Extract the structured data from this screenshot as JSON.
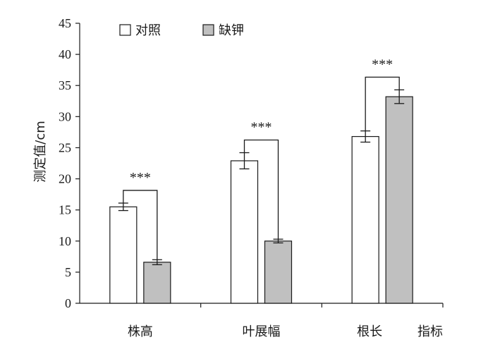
{
  "chart_data": {
    "type": "bar",
    "categories": [
      "株高",
      "叶展幅",
      "根长"
    ],
    "xlabel": "指标",
    "ylabel": "测定值/cm",
    "ylim": [
      0,
      45
    ],
    "yticks": [
      0,
      5,
      10,
      15,
      20,
      25,
      30,
      35,
      40,
      45
    ],
    "grid": false,
    "legend_position": "top-left",
    "series": [
      {
        "name": "对照",
        "values": [
          15.5,
          22.9,
          26.8
        ],
        "errors": [
          0.6,
          1.3,
          0.9
        ],
        "color": "#ffffff"
      },
      {
        "name": "缺钾",
        "values": [
          6.6,
          10.0,
          33.2
        ],
        "errors": [
          0.4,
          0.3,
          1.1
        ],
        "color": "#c0c0c0"
      }
    ],
    "annotations": [
      "***",
      "***",
      "***"
    ]
  }
}
